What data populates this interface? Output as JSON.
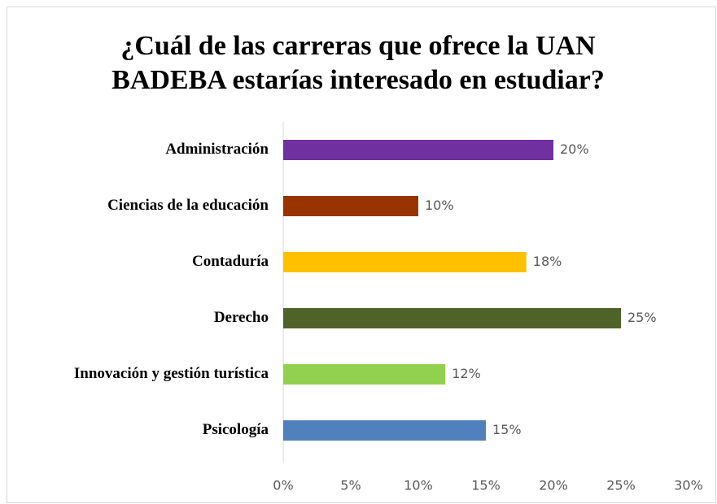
{
  "chart_data": {
    "type": "barh",
    "title": "¿Cuál de las carreras que ofrece la UAN BADEBA estarías interesado en estudiar?",
    "categories": [
      "Administración",
      "Ciencias de la educación",
      "Contaduría",
      "Derecho",
      "Innovación y gestión turística",
      "Psicología"
    ],
    "values": [
      20,
      10,
      18,
      25,
      12,
      15
    ],
    "value_labels": [
      "20%",
      "10%",
      "18%",
      "25%",
      "12%",
      "15%"
    ],
    "colors": [
      "#7030a0",
      "#993300",
      "#ffc000",
      "#4f6228",
      "#92d050",
      "#4f81bd"
    ],
    "xlim": [
      0,
      30
    ],
    "xticks": [
      {
        "value": 0,
        "label": "0%"
      },
      {
        "value": 5,
        "label": "5%"
      },
      {
        "value": 10,
        "label": "10%"
      },
      {
        "value": 15,
        "label": "15%"
      },
      {
        "value": 20,
        "label": "20%"
      },
      {
        "value": 25,
        "label": "25%"
      },
      {
        "value": 30,
        "label": "30%"
      }
    ],
    "grid": false
  }
}
